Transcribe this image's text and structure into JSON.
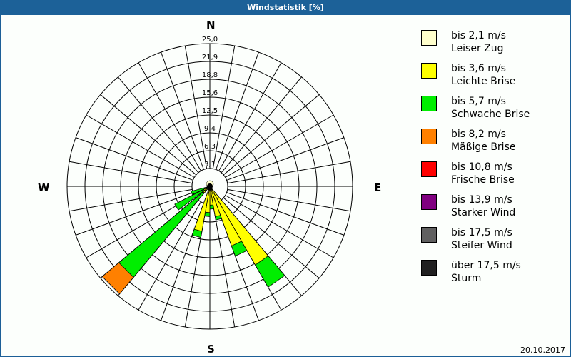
{
  "window": {
    "title": "Windstatistik [%]"
  },
  "compass": {
    "north": "N",
    "east": "E",
    "south": "S",
    "west": "W"
  },
  "footer": {
    "date": "20.10.2017"
  },
  "legend": [
    {
      "speed": "bis 2,1 m/s",
      "name": "Leiser Zug",
      "color": "#ffffcc"
    },
    {
      "speed": "bis 3,6 m/s",
      "name": "Leichte Brise",
      "color": "#ffff00"
    },
    {
      "speed": "bis 5,7 m/s",
      "name": "Schwache Brise",
      "color": "#00ee00"
    },
    {
      "speed": "bis 8,2 m/s",
      "name": "Mäßige Brise",
      "color": "#ff8000"
    },
    {
      "speed": "bis 10,8 m/s",
      "name": "Frische Brise",
      "color": "#ff0000"
    },
    {
      "speed": "bis 13,9 m/s",
      "name": "Starker Wind",
      "color": "#800080"
    },
    {
      "speed": "bis 17,5 m/s",
      "name": "Steifer Wind",
      "color": "#606060"
    },
    {
      "speed": "über 17,5 m/s",
      "name": "Sturm",
      "color": "#202020"
    }
  ],
  "chart_data": {
    "type": "wind-rose",
    "title": "Windstatistik [%]",
    "unit": "%",
    "radial_ticks": [
      "3,1",
      "6,3",
      "9,4",
      "12,5",
      "15,6",
      "18,8",
      "21,9",
      "25,0"
    ],
    "radial_range": [
      0,
      25
    ],
    "sector_width_deg": 10,
    "grid": true,
    "legend_position": "right",
    "categories": [
      "bis 2,1 m/s",
      "bis 3,6 m/s",
      "bis 5,7 m/s",
      "bis 8,2 m/s",
      "bis 10,8 m/s",
      "bis 13,9 m/s",
      "bis 17,5 m/s",
      "über 17,5 m/s"
    ],
    "sectors": [
      {
        "direction_deg": 145,
        "cumulative": [
          0.6,
          15.9,
          20.4
        ]
      },
      {
        "direction_deg": 155,
        "cumulative": [
          0.6,
          11.1,
          13.0
        ]
      },
      {
        "direction_deg": 165,
        "cumulative": [
          0.6,
          5.4,
          6.0
        ]
      },
      {
        "direction_deg": 175,
        "cumulative": [
          0.6,
          3.3,
          4.0
        ]
      },
      {
        "direction_deg": 185,
        "cumulative": [
          0.6,
          4.6,
          5.3
        ]
      },
      {
        "direction_deg": 195,
        "cumulative": [
          0.6,
          8.0,
          9.1
        ]
      },
      {
        "direction_deg": 225,
        "cumulative": [
          0.6,
          1.5,
          20.8,
          24.6
        ]
      },
      {
        "direction_deg": 238,
        "cumulative": [
          0.6,
          1.2,
          6.9
        ]
      },
      {
        "direction_deg": 250,
        "cumulative": [
          0.6,
          1.0,
          3.4
        ]
      }
    ]
  }
}
